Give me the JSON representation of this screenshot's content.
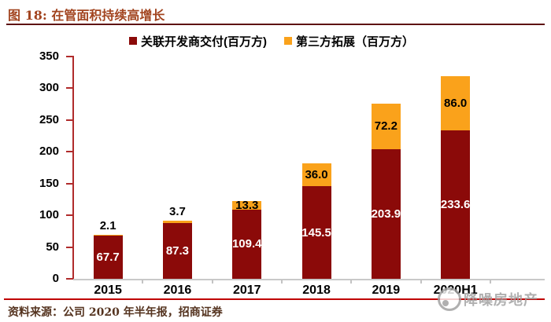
{
  "figure": {
    "title": "图 18: 在管面积持续高增长",
    "source": "资料来源：公司 2020 年半年报，招商证券",
    "watermark": "降噪房地产"
  },
  "legend": [
    {
      "label": "关联开发商交付(百万方)",
      "color": "#8B0A09"
    },
    {
      "label": "第三方拓展（百万方）",
      "color": "#FAA21B"
    }
  ],
  "chart_data": {
    "type": "bar",
    "stacked": true,
    "title": "在管面积持续高增长",
    "categories": [
      "2015",
      "2016",
      "2017",
      "2018",
      "2019",
      "2020H1"
    ],
    "series": [
      {
        "name": "关联开发商交付(百万方)",
        "color": "#8B0A09",
        "values": [
          67.7,
          87.3,
          109.4,
          145.5,
          203.9,
          233.6
        ],
        "labels": [
          "67.7",
          "87.3",
          "109.4",
          "145.5",
          "203.9",
          "233.6"
        ],
        "label_color": "#FFFFFF"
      },
      {
        "name": "第三方拓展（百万方）",
        "color": "#FAA21B",
        "values": [
          2.1,
          3.7,
          13.3,
          36.0,
          72.2,
          86.0
        ],
        "labels": [
          "2.1",
          "3.7",
          "13.3",
          "36.0",
          "72.2",
          "86.0"
        ],
        "label_color": "#000000"
      }
    ],
    "ylim": [
      0,
      350
    ],
    "ytick_step": 50,
    "grid": false,
    "legend_position": "top",
    "axis_colors": {
      "y_axis": "#B02B2B",
      "x_axis": "#C9C9C9"
    }
  }
}
